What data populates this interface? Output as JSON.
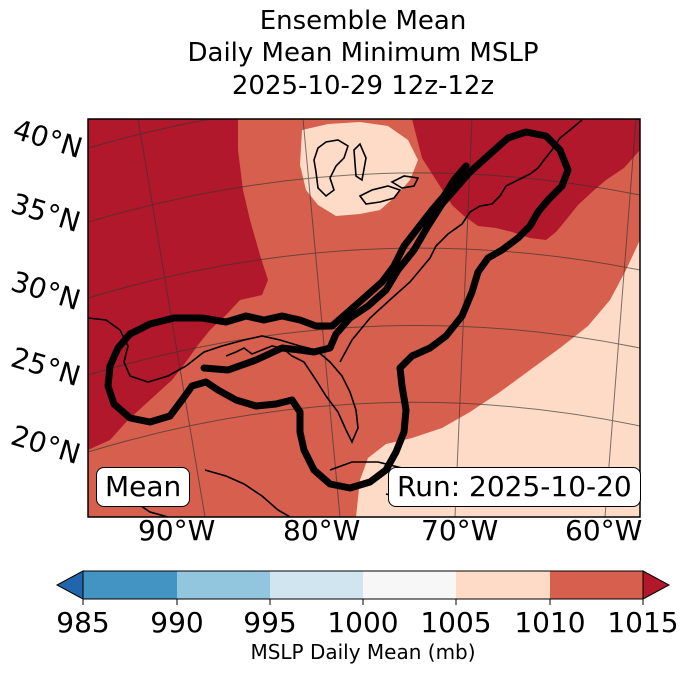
{
  "title": {
    "line1": "Ensemble Mean",
    "line2": "Daily Mean Minimum MSLP",
    "line3": "2025-10-29 12z-12z"
  },
  "map": {
    "latitude_labels": [
      "40°N",
      "35°N",
      "30°N",
      "25°N",
      "20°N"
    ],
    "longitude_labels": [
      "90°W",
      "80°W",
      "70°W",
      "60°W"
    ],
    "left_box": "Mean",
    "right_box": "Run: 2025-10-20"
  },
  "colorbar": {
    "ticks": [
      "985",
      "990",
      "995",
      "1000",
      "1005",
      "1010",
      "1015"
    ],
    "label": "MSLP Daily Mean (mb)",
    "colors": {
      "below": "#2166ac",
      "985-990": "#4393c3",
      "990-995": "#92c5de",
      "995-1000": "#d1e5f0",
      "1000-1005": "#f7f7f7",
      "1005-1010": "#fddbc7",
      "1010-1015": "#d6604d",
      "above": "#b2182b"
    }
  }
}
